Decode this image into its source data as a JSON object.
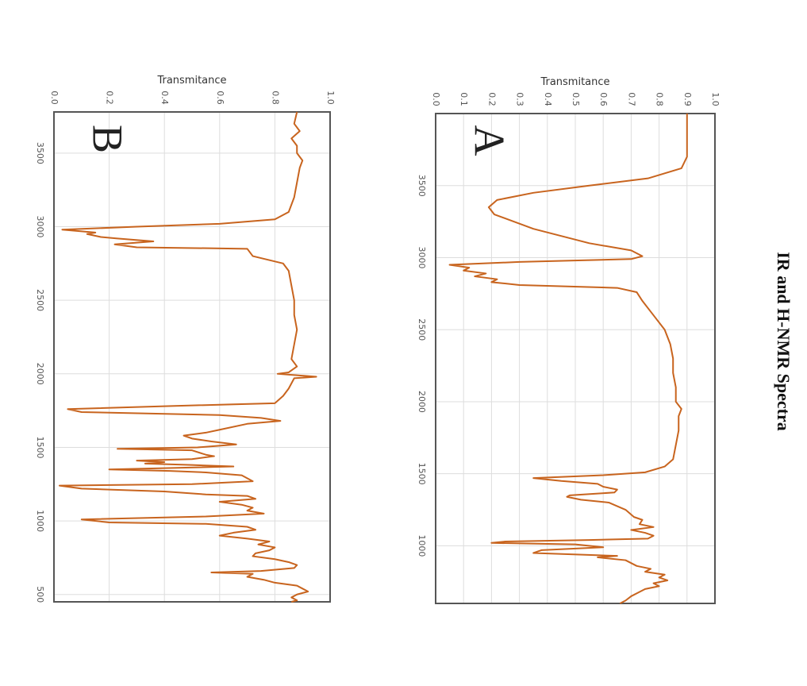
{
  "title": "IR and H-NMR Spectra",
  "chart_data": [
    {
      "type": "line",
      "annotation": "A",
      "y_label": "Transmitance",
      "color": "#c8641e",
      "grid": true,
      "xlim": [
        4000,
        600
      ],
      "xticks": [
        3500,
        3000,
        2500,
        2000,
        1500,
        1000
      ],
      "ylim": [
        0,
        1
      ],
      "yticks": [
        {
          "value": 0,
          "label": "0.0"
        },
        0.1,
        0.2,
        0.3,
        0.4,
        0.5,
        0.6,
        0.7,
        0.8,
        0.9,
        {
          "value": 1,
          "label": "1.0"
        }
      ],
      "x": [
        4000,
        3700,
        3620,
        3550,
        3500,
        3450,
        3400,
        3350,
        3300,
        3200,
        3100,
        3050,
        3010,
        2990,
        2970,
        2950,
        2930,
        2910,
        2890,
        2870,
        2850,
        2830,
        2810,
        2790,
        2760,
        2700,
        2600,
        2500,
        2400,
        2300,
        2200,
        2100,
        2000,
        1950,
        1900,
        1800,
        1700,
        1600,
        1550,
        1510,
        1490,
        1470,
        1450,
        1430,
        1410,
        1390,
        1370,
        1350,
        1340,
        1320,
        1300,
        1250,
        1200,
        1180,
        1150,
        1130,
        1110,
        1090,
        1070,
        1050,
        1040,
        1030,
        1020,
        1010,
        990,
        970,
        950,
        930,
        920,
        900,
        880,
        860,
        840,
        820,
        800,
        780,
        760,
        740,
        720,
        700,
        680,
        650,
        620,
        600
      ],
      "values": [
        0.9,
        0.9,
        0.88,
        0.76,
        0.55,
        0.35,
        0.22,
        0.19,
        0.21,
        0.35,
        0.55,
        0.7,
        0.74,
        0.7,
        0.3,
        0.05,
        0.12,
        0.1,
        0.18,
        0.14,
        0.22,
        0.2,
        0.3,
        0.65,
        0.72,
        0.74,
        0.78,
        0.82,
        0.84,
        0.85,
        0.85,
        0.86,
        0.86,
        0.88,
        0.87,
        0.87,
        0.86,
        0.85,
        0.82,
        0.75,
        0.6,
        0.35,
        0.45,
        0.58,
        0.6,
        0.65,
        0.64,
        0.48,
        0.47,
        0.52,
        0.62,
        0.68,
        0.71,
        0.74,
        0.73,
        0.78,
        0.7,
        0.75,
        0.78,
        0.76,
        0.55,
        0.25,
        0.2,
        0.5,
        0.6,
        0.38,
        0.35,
        0.65,
        0.58,
        0.68,
        0.7,
        0.72,
        0.77,
        0.75,
        0.82,
        0.8,
        0.83,
        0.78,
        0.8,
        0.75,
        0.73,
        0.7,
        0.68,
        0.66
      ]
    },
    {
      "type": "line",
      "annotation": "B",
      "y_label": "Transmitance",
      "color": "#c8641e",
      "grid": true,
      "xlim": [
        3780,
        450
      ],
      "xticks": [
        3500,
        3000,
        2500,
        2000,
        1500,
        1000,
        500
      ],
      "ylim": [
        0,
        1
      ],
      "yticks": [
        {
          "value": 0,
          "label": "0.0"
        },
        0.2,
        0.4,
        0.6,
        0.8,
        {
          "value": 1,
          "label": "1.0"
        }
      ],
      "x": [
        3780,
        3700,
        3650,
        3600,
        3550,
        3500,
        3450,
        3400,
        3300,
        3200,
        3100,
        3050,
        3020,
        3000,
        2980,
        2960,
        2950,
        2930,
        2920,
        2900,
        2880,
        2860,
        2850,
        2800,
        2750,
        2700,
        2600,
        2500,
        2400,
        2300,
        2200,
        2100,
        2050,
        2010,
        2000,
        1990,
        1980,
        1970,
        1900,
        1850,
        1800,
        1780,
        1760,
        1740,
        1720,
        1700,
        1680,
        1660,
        1620,
        1600,
        1580,
        1560,
        1540,
        1520,
        1500,
        1490,
        1480,
        1450,
        1440,
        1420,
        1410,
        1400,
        1390,
        1380,
        1370,
        1350,
        1340,
        1330,
        1310,
        1290,
        1270,
        1250,
        1240,
        1220,
        1200,
        1180,
        1170,
        1150,
        1130,
        1110,
        1090,
        1070,
        1050,
        1030,
        1010,
        990,
        980,
        960,
        940,
        920,
        900,
        880,
        860,
        840,
        820,
        800,
        780,
        760,
        740,
        720,
        700,
        680,
        660,
        650,
        640,
        620,
        600,
        580,
        560,
        540,
        520,
        500,
        480,
        460,
        450
      ],
      "values": [
        0.88,
        0.87,
        0.89,
        0.86,
        0.88,
        0.88,
        0.9,
        0.89,
        0.88,
        0.87,
        0.85,
        0.8,
        0.6,
        0.3,
        0.03,
        0.15,
        0.12,
        0.17,
        0.23,
        0.36,
        0.22,
        0.3,
        0.7,
        0.72,
        0.83,
        0.85,
        0.86,
        0.87,
        0.87,
        0.88,
        0.87,
        0.86,
        0.88,
        0.85,
        0.81,
        0.88,
        0.95,
        0.87,
        0.85,
        0.83,
        0.8,
        0.4,
        0.05,
        0.1,
        0.6,
        0.75,
        0.82,
        0.7,
        0.6,
        0.55,
        0.47,
        0.5,
        0.57,
        0.66,
        0.52,
        0.23,
        0.5,
        0.55,
        0.58,
        0.5,
        0.3,
        0.4,
        0.33,
        0.5,
        0.65,
        0.2,
        0.42,
        0.55,
        0.68,
        0.7,
        0.72,
        0.5,
        0.02,
        0.1,
        0.4,
        0.55,
        0.7,
        0.73,
        0.6,
        0.68,
        0.72,
        0.7,
        0.76,
        0.55,
        0.1,
        0.2,
        0.55,
        0.7,
        0.73,
        0.65,
        0.6,
        0.7,
        0.78,
        0.74,
        0.8,
        0.78,
        0.73,
        0.72,
        0.8,
        0.85,
        0.88,
        0.87,
        0.75,
        0.57,
        0.72,
        0.7,
        0.76,
        0.8,
        0.88,
        0.9,
        0.92,
        0.88,
        0.86,
        0.88,
        0.86
      ]
    }
  ]
}
